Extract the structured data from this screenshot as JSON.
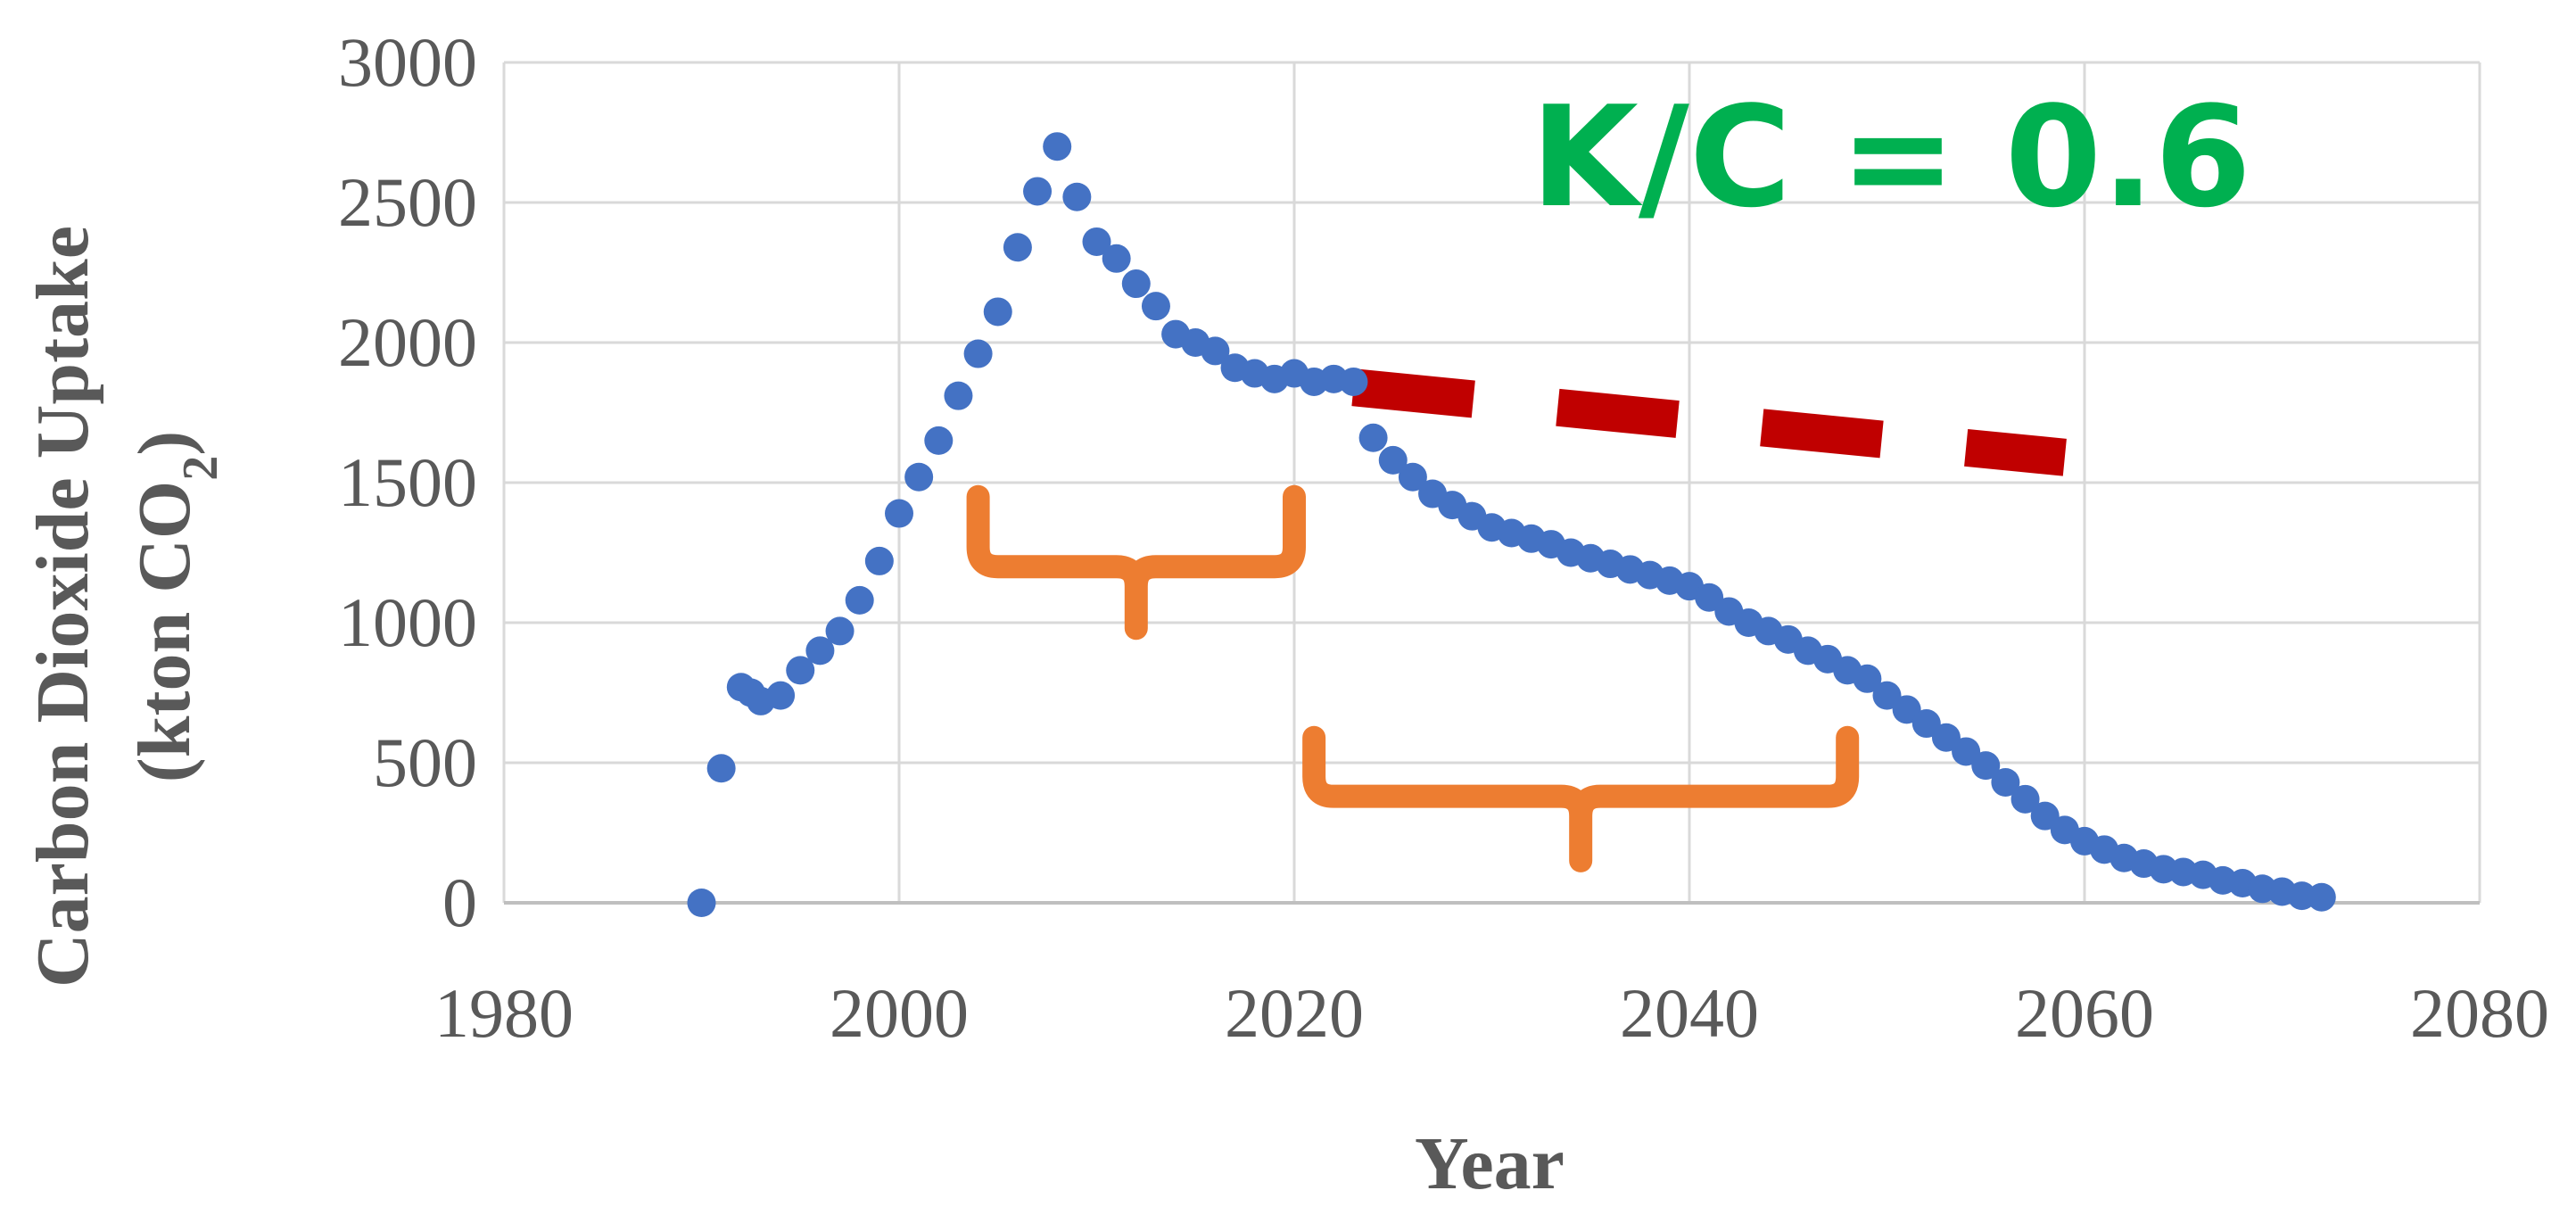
{
  "chart_data": {
    "type": "scatter",
    "title": "",
    "xlabel": "Year",
    "ylabel_line1": "Carbon Dioxide Uptake",
    "ylabel_line2_prefix": "(kton CO",
    "ylabel_line2_sub": "2",
    "ylabel_line2_suffix": ")",
    "xlim": [
      1980,
      2080
    ],
    "ylim": [
      0,
      3000
    ],
    "xticks": [
      1980,
      2000,
      2020,
      2040,
      2060,
      2080
    ],
    "yticks": [
      0,
      500,
      1000,
      1500,
      2000,
      2500,
      3000
    ],
    "grid": true,
    "legend": "none",
    "colors": {
      "points": "#4472c4",
      "trend": "#c00000",
      "braces": "#ed7d31",
      "annotation": "#00b050",
      "text": "#595959",
      "grid": "#d9d9d9"
    },
    "annotation": "K/C = 0.6",
    "series": [
      {
        "x": [
          1990,
          1991,
          1992,
          1992.5,
          1993,
          1994,
          1995,
          1996,
          1997,
          1998,
          1999,
          2000,
          2001,
          2002,
          2003,
          2004,
          2005,
          2006,
          2007,
          2008,
          2009,
          2010,
          2011,
          2012,
          2013,
          2014,
          2015,
          2016,
          2017,
          2018,
          2019,
          2020,
          2021,
          2022,
          2023,
          2024,
          2025,
          2026,
          2027,
          2028,
          2029,
          2030,
          2031,
          2032,
          2033,
          2034,
          2035,
          2036,
          2037,
          2038,
          2039,
          2040,
          2041,
          2042,
          2043,
          2044,
          2045,
          2046,
          2047,
          2048,
          2049,
          2050,
          2051,
          2052,
          2053,
          2054,
          2055,
          2056,
          2057,
          2058,
          2059,
          2060,
          2061,
          2062,
          2063,
          2064,
          2065,
          2066,
          2067,
          2068,
          2069,
          2070,
          2071,
          2072
        ],
        "y": [
          0,
          480,
          770,
          750,
          720,
          740,
          830,
          900,
          970,
          1080,
          1220,
          1390,
          1520,
          1650,
          1810,
          1960,
          2110,
          2340,
          2540,
          2700,
          2520,
          2360,
          2300,
          2210,
          2130,
          2030,
          2000,
          1970,
          1910,
          1890,
          1870,
          1890,
          1860,
          1870,
          1860,
          1660,
          1580,
          1520,
          1460,
          1420,
          1380,
          1340,
          1320,
          1300,
          1280,
          1250,
          1230,
          1210,
          1190,
          1170,
          1150,
          1130,
          1090,
          1040,
          1000,
          970,
          940,
          900,
          870,
          830,
          800,
          740,
          690,
          640,
          590,
          540,
          490,
          430,
          370,
          310,
          260,
          220,
          190,
          160,
          140,
          120,
          110,
          100,
          80,
          70,
          50,
          40,
          25,
          20
        ]
      }
    ],
    "trend_line": {
      "x": [
        2023,
        2059
      ],
      "y": [
        1840,
        1590
      ]
    },
    "braces": [
      {
        "x": [
          2004,
          2020
        ],
        "y_top": 1450,
        "y_base": 1200,
        "y_tip": 980
      },
      {
        "x": [
          2021,
          2048
        ],
        "y_top": 590,
        "y_base": 380,
        "y_tip": 150
      }
    ]
  }
}
